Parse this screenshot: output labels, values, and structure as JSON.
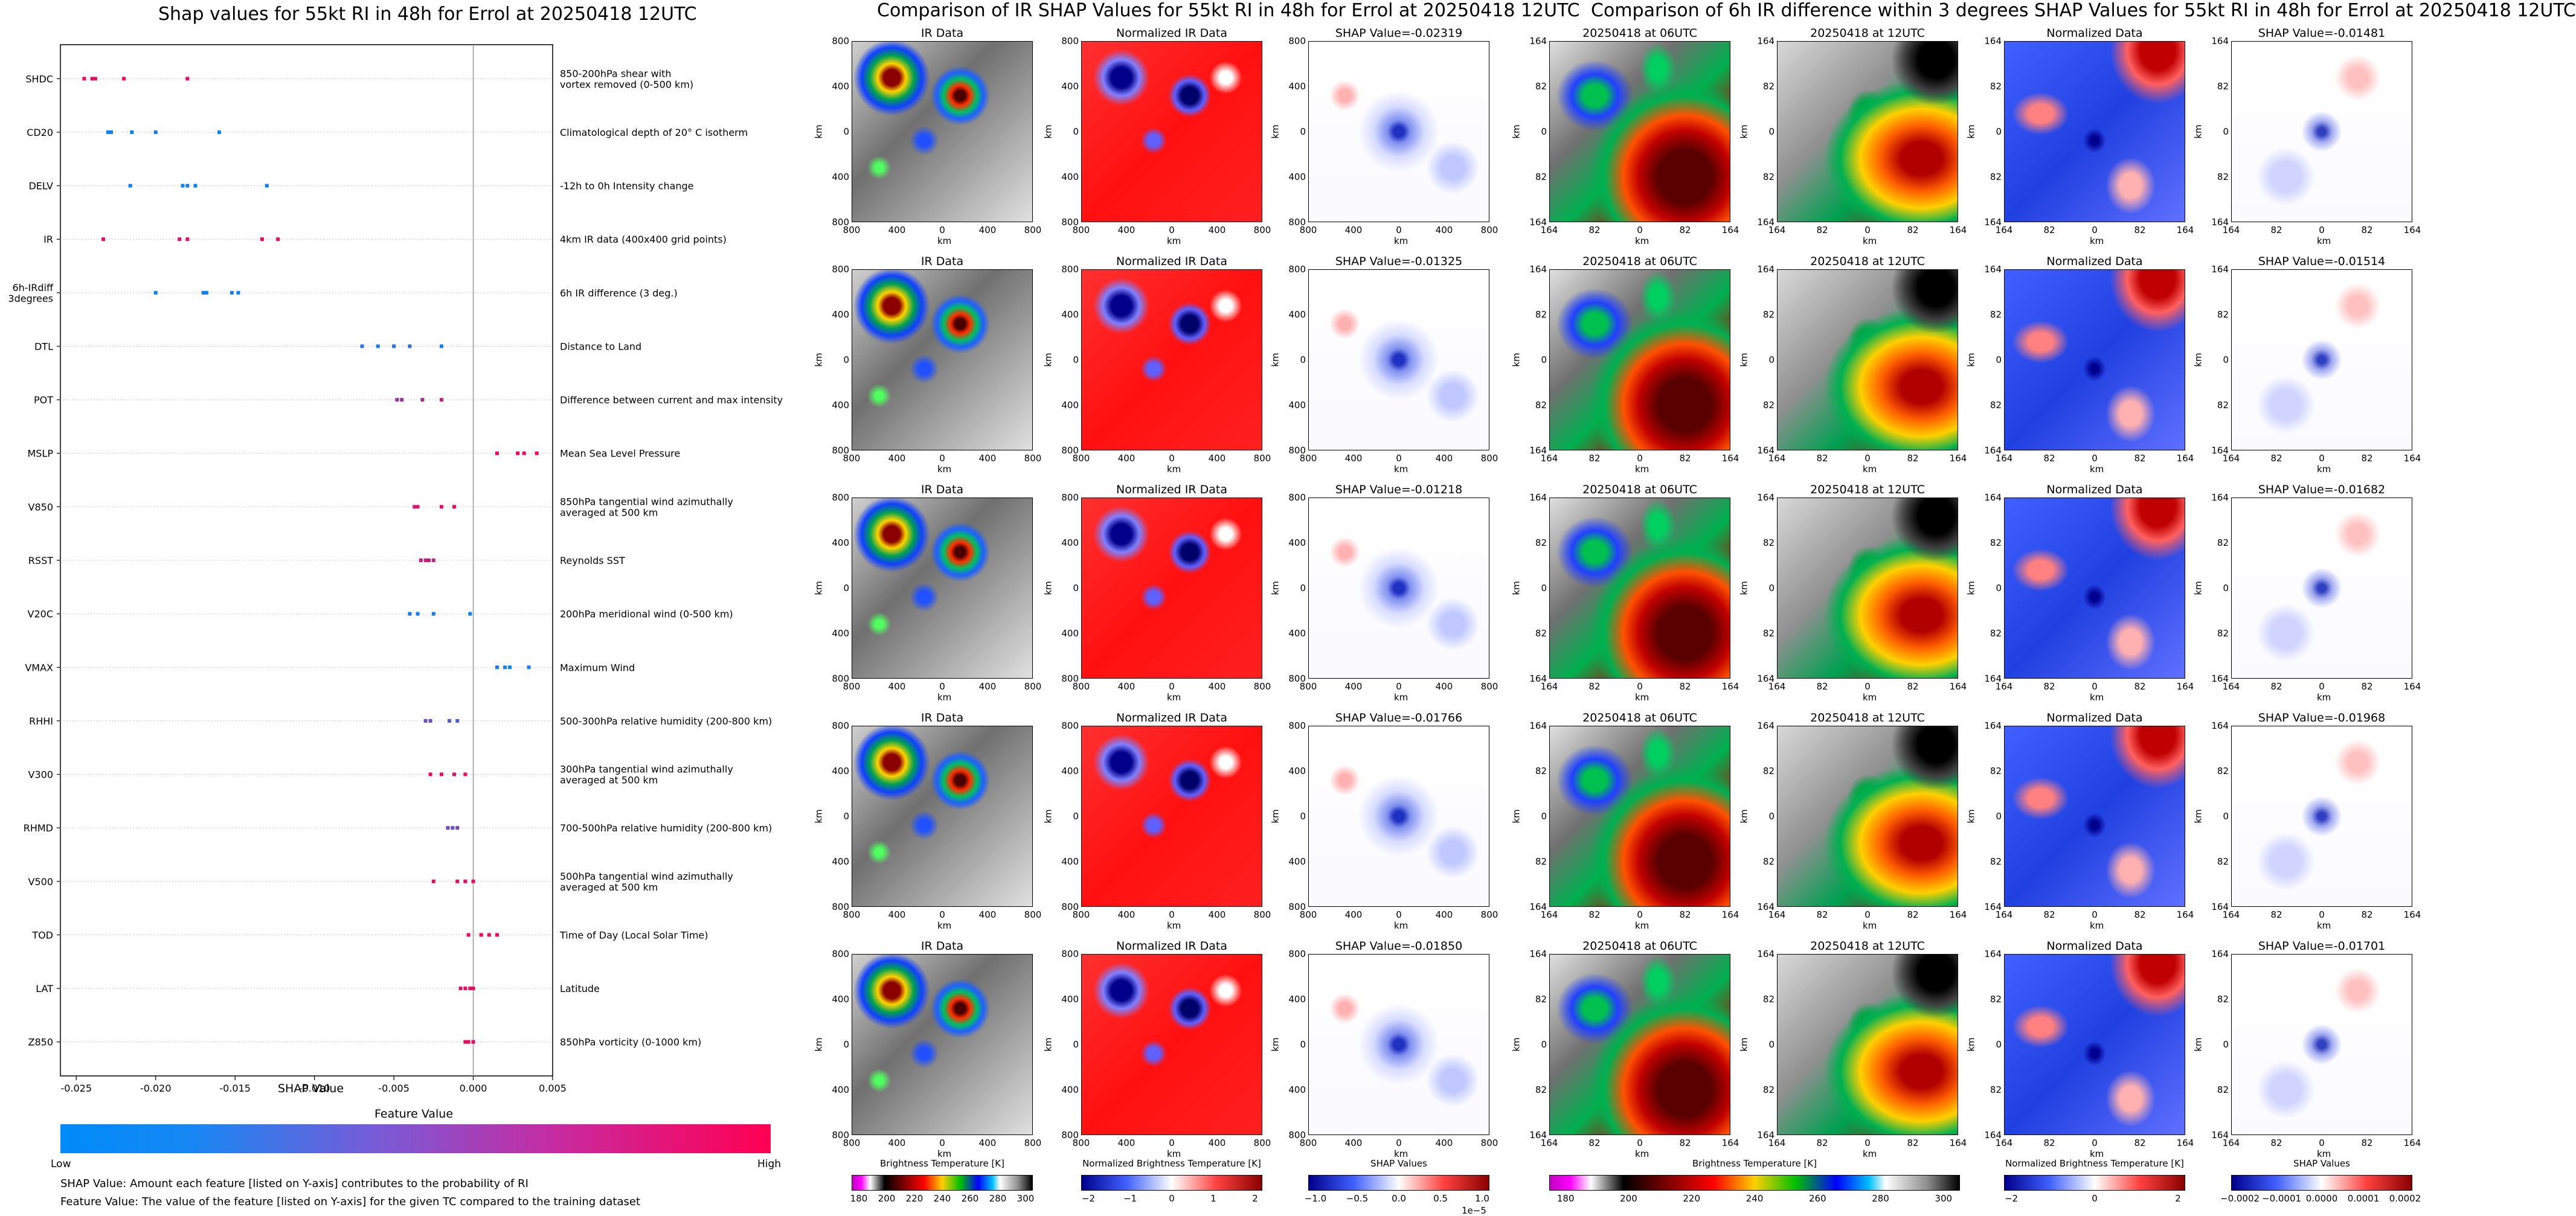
{
  "left": {
    "title": "Shap values for 55kt RI in 48h for Errol at 20250418 12UTC",
    "xlabel": "SHAP Value",
    "colorbar_title": "Feature Value",
    "colorbar_low": "Low",
    "colorbar_high": "High",
    "footnote1": "SHAP Value: Amount each feature [listed on Y-axis] contributes to the probability of RI",
    "footnote2": "Feature Value: The value of the feature [listed on Y-axis] for the given TC compared to the training dataset"
  },
  "chart_data": [
    {
      "type": "scatter",
      "title": "Shap values for 55kt RI in 48h for Errol at 20250418 12UTC",
      "xlabel": "SHAP Value",
      "xlim": [
        -0.026,
        0.005
      ],
      "xticks": [
        "-0.025",
        "-0.020",
        "-0.015",
        "-0.010",
        "-0.005",
        "0.000",
        "0.005"
      ],
      "xtick_values": [
        -0.025,
        -0.02,
        -0.015,
        -0.01,
        -0.005,
        0.0,
        0.005
      ],
      "colors": {
        "low": "#008afa",
        "high": "#ff0052"
      },
      "features": [
        {
          "name": "SHDC",
          "desc": "850-200hPa shear with\nvortex removed (0-500 km)",
          "points": [
            [
              -0.0245,
              0.9
            ],
            [
              -0.024,
              0.85
            ],
            [
              -0.0238,
              0.9
            ],
            [
              -0.022,
              0.95
            ],
            [
              -0.018,
              0.9
            ]
          ]
        },
        {
          "name": "CD20",
          "desc": "Climatological depth of 20° C isotherm",
          "points": [
            [
              -0.023,
              0.05
            ],
            [
              -0.0228,
              0.1
            ],
            [
              -0.0215,
              0.05
            ],
            [
              -0.02,
              0.1
            ],
            [
              -0.016,
              0.05
            ]
          ]
        },
        {
          "name": "DELV",
          "desc": "-12h to 0h Intensity change",
          "points": [
            [
              -0.0216,
              0.1
            ],
            [
              -0.0183,
              0.05
            ],
            [
              -0.018,
              0.1
            ],
            [
              -0.0175,
              0.05
            ],
            [
              -0.013,
              0.1
            ]
          ]
        },
        {
          "name": "IR",
          "desc": "4km IR data (400x400 grid points)",
          "points": [
            [
              -0.0233,
              0.9
            ],
            [
              -0.0185,
              0.85
            ],
            [
              -0.018,
              0.9
            ],
            [
              -0.0133,
              0.95
            ],
            [
              -0.0123,
              0.9
            ]
          ]
        },
        {
          "name": "6h-IRdiff\n3degrees",
          "desc": "6h IR difference (3 deg.)",
          "points": [
            [
              -0.02,
              0.05
            ],
            [
              -0.017,
              0.1
            ],
            [
              -0.0168,
              0.05
            ],
            [
              -0.0152,
              0.1
            ],
            [
              -0.0148,
              0.05
            ]
          ]
        },
        {
          "name": "DTL",
          "desc": "Distance to Land",
          "points": [
            [
              -0.007,
              0.15
            ],
            [
              -0.006,
              0.1
            ],
            [
              -0.005,
              0.15
            ],
            [
              -0.004,
              0.2
            ],
            [
              -0.002,
              0.1
            ]
          ]
        },
        {
          "name": "POT",
          "desc": "Difference between current and max intensity",
          "points": [
            [
              -0.0048,
              0.6
            ],
            [
              -0.0045,
              0.6
            ],
            [
              -0.0032,
              0.65
            ],
            [
              -0.002,
              0.75
            ]
          ]
        },
        {
          "name": "MSLP",
          "desc": "Mean Sea Level Pressure",
          "points": [
            [
              0.0015,
              0.9
            ],
            [
              0.0028,
              0.95
            ],
            [
              0.0032,
              0.9
            ],
            [
              0.004,
              0.95
            ]
          ]
        },
        {
          "name": "V850",
          "desc": "850hPa tangential wind azimuthally\naveraged at 500 km",
          "points": [
            [
              -0.0037,
              0.8
            ],
            [
              -0.0035,
              0.85
            ],
            [
              -0.002,
              0.85
            ],
            [
              -0.0012,
              0.9
            ]
          ]
        },
        {
          "name": "RSST",
          "desc": "Reynolds SST",
          "points": [
            [
              -0.0033,
              0.75
            ],
            [
              -0.003,
              0.75
            ],
            [
              -0.0028,
              0.8
            ],
            [
              -0.0025,
              0.7
            ]
          ]
        },
        {
          "name": "V20C",
          "desc": "200hPa meridional wind (0-500 km)",
          "points": [
            [
              -0.004,
              0.1
            ],
            [
              -0.0035,
              0.1
            ],
            [
              -0.0025,
              0.1
            ],
            [
              -0.0002,
              0.05
            ]
          ]
        },
        {
          "name": "VMAX",
          "desc": "Maximum Wind",
          "points": [
            [
              0.0015,
              0.1
            ],
            [
              0.002,
              0.1
            ],
            [
              0.0023,
              0.05
            ],
            [
              0.0035,
              0.1
            ]
          ]
        },
        {
          "name": "RHHI",
          "desc": "500-300hPa relative humidity (200-800 km)",
          "points": [
            [
              -0.003,
              0.4
            ],
            [
              -0.0027,
              0.4
            ],
            [
              -0.0015,
              0.35
            ],
            [
              -0.001,
              0.3
            ]
          ]
        },
        {
          "name": "V300",
          "desc": "300hPa tangential wind azimuthally\naveraged at 500 km",
          "points": [
            [
              -0.0027,
              0.9
            ],
            [
              -0.002,
              0.9
            ],
            [
              -0.0012,
              0.85
            ],
            [
              -0.0005,
              0.9
            ]
          ]
        },
        {
          "name": "RHMD",
          "desc": "700-500hPa relative humidity (200-800 km)",
          "points": [
            [
              -0.0016,
              0.45
            ],
            [
              -0.0013,
              0.4
            ],
            [
              -0.001,
              0.45
            ]
          ]
        },
        {
          "name": "V500",
          "desc": "500hPa tangential wind azimuthally\naveraged at 500 km",
          "points": [
            [
              -0.0025,
              0.9
            ],
            [
              -0.001,
              0.9
            ],
            [
              -0.0005,
              0.9
            ],
            [
              0.0,
              0.9
            ]
          ]
        },
        {
          "name": "TOD",
          "desc": "Time of Day (Local Solar Time)",
          "points": [
            [
              -0.0003,
              0.9
            ],
            [
              0.0005,
              0.95
            ],
            [
              0.001,
              0.9
            ],
            [
              0.0015,
              0.95
            ]
          ]
        },
        {
          "name": "LAT",
          "desc": "Latitude",
          "points": [
            [
              -0.0008,
              0.9
            ],
            [
              -0.0005,
              0.9
            ],
            [
              -0.0002,
              0.85
            ],
            [
              0.0,
              0.9
            ]
          ]
        },
        {
          "name": "Z850",
          "desc": "850hPa vorticity (0-1000 km)",
          "points": [
            [
              -0.0005,
              0.9
            ],
            [
              -0.0003,
              0.9
            ],
            [
              0.0,
              0.9
            ]
          ]
        }
      ]
    },
    {
      "type": "heatmap",
      "title": "Comparison of IR SHAP Values for 55kt RI in 48h for Errol at 20250418 12UTC",
      "panel_titles": [
        "IR Data",
        "Normalized IR Data"
      ],
      "shap_titles": [
        "SHAP Value=-0.02319",
        "SHAP Value=-0.01325",
        "SHAP Value=-0.01218",
        "SHAP Value=-0.01766",
        "SHAP Value=-0.01850"
      ],
      "axis_ticks": [
        "800",
        "400",
        "0",
        "400",
        "800"
      ],
      "axis_label": "km",
      "colorbars": [
        {
          "label": "Brightness Temperature [K]",
          "ticks": [
            "180",
            "200",
            "220",
            "240",
            "260",
            "280",
            "300"
          ]
        },
        {
          "label": "Normalized Brightness Temperature [K]",
          "ticks": [
            "−2",
            "−1",
            "0",
            "1",
            "2"
          ]
        },
        {
          "label": "SHAP Values",
          "ticks": [
            "−1.0",
            "−0.5",
            "0.0",
            "0.5",
            "1.0"
          ],
          "exponent": "1e−5"
        }
      ]
    },
    {
      "type": "heatmap",
      "title": "Comparison of 6h IR difference within 3 degrees SHAP Values for 55kt RI in 48h for Errol at 20250418 12UTC",
      "panel_titles": [
        "20250418 at 06UTC",
        "20250418 at 12UTC",
        "Normalized Data"
      ],
      "shap_titles": [
        "SHAP Value=-0.01481",
        "SHAP Value=-0.01514",
        "SHAP Value=-0.01682",
        "SHAP Value=-0.01968",
        "SHAP Value=-0.01701"
      ],
      "axis_ticks": [
        "164",
        "82",
        "0",
        "82",
        "164"
      ],
      "axis_label": "km",
      "colorbars": [
        {
          "label": "Brightness Temperature [K]",
          "ticks": [
            "180",
            "200",
            "220",
            "240",
            "260",
            "280",
            "300"
          ]
        },
        {
          "label": "Normalized Brightness Temperature [K]",
          "ticks": [
            "−2",
            "0",
            "2"
          ]
        },
        {
          "label": "SHAP Values",
          "ticks": [
            "−0.0002",
            "−0.0001",
            "0.0000",
            "0.0001",
            "0.0002"
          ]
        }
      ]
    }
  ]
}
